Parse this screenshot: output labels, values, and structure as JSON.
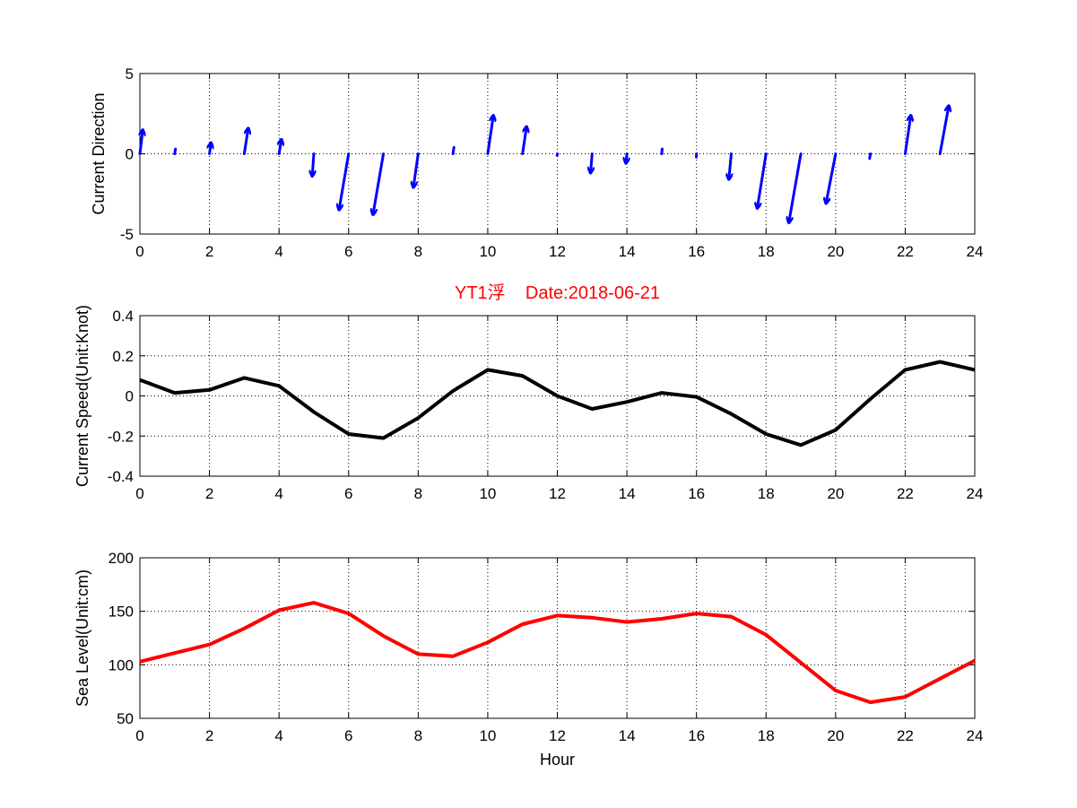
{
  "chart_data": [
    {
      "type": "quiver",
      "title": "",
      "xlabel": "",
      "ylabel": "Current Direction",
      "xlim": [
        0,
        24
      ],
      "ylim": [
        -5,
        5
      ],
      "xticks": [
        0,
        2,
        4,
        6,
        8,
        10,
        12,
        14,
        16,
        18,
        20,
        22,
        24
      ],
      "yticks": [
        -5,
        0,
        5
      ],
      "grid": true,
      "color": "#0000ff",
      "x": [
        0,
        1,
        2,
        3,
        4,
        5,
        6,
        7,
        8,
        9,
        10,
        11,
        12,
        13,
        14,
        15,
        16,
        17,
        18,
        19,
        20,
        21,
        22,
        23
      ],
      "u": [
        0.18,
        0.05,
        0.1,
        0.25,
        0.15,
        -0.1,
        -0.6,
        -0.65,
        -0.3,
        0.06,
        0.35,
        0.25,
        -0.01,
        -0.1,
        -0.06,
        0.03,
        -0.01,
        -0.15,
        -0.55,
        -0.75,
        -0.6,
        -0.05,
        0.35,
        0.55
      ],
      "v": [
        1.5,
        0.3,
        0.7,
        1.6,
        0.9,
        -1.4,
        -3.5,
        -3.8,
        -2.1,
        0.4,
        2.4,
        1.7,
        -0.1,
        -1.2,
        -0.6,
        0.3,
        -0.2,
        -1.6,
        -3.4,
        -4.3,
        -3.1,
        -0.3,
        2.4,
        3.0
      ]
    },
    {
      "type": "line",
      "title": "YT1浮    Date:2018-06-21",
      "xlabel": "",
      "ylabel": "Current Speed(Unit:Knot)",
      "xlim": [
        0,
        24
      ],
      "ylim": [
        -0.4,
        0.4
      ],
      "xticks": [
        0,
        2,
        4,
        6,
        8,
        10,
        12,
        14,
        16,
        18,
        20,
        22,
        24
      ],
      "yticks": [
        -0.4,
        -0.2,
        0,
        0.2,
        0.4
      ],
      "grid": true,
      "color": "#000000",
      "x": [
        0,
        1,
        2,
        3,
        4,
        5,
        6,
        7,
        8,
        9,
        10,
        11,
        12,
        13,
        14,
        15,
        16,
        17,
        18,
        19,
        20,
        21,
        22,
        23,
        24
      ],
      "y": [
        0.08,
        0.015,
        0.03,
        0.09,
        0.05,
        -0.08,
        -0.19,
        -0.21,
        -0.11,
        0.025,
        0.13,
        0.1,
        0.0,
        -0.065,
        -0.03,
        0.015,
        -0.005,
        -0.09,
        -0.19,
        -0.245,
        -0.17,
        -0.015,
        0.13,
        0.17,
        0.13
      ]
    },
    {
      "type": "line",
      "title": "",
      "xlabel": "Hour",
      "ylabel": "Sea Level(Unit:cm)",
      "xlim": [
        0,
        24
      ],
      "ylim": [
        50,
        200
      ],
      "xticks": [
        0,
        2,
        4,
        6,
        8,
        10,
        12,
        14,
        16,
        18,
        20,
        22,
        24
      ],
      "yticks": [
        50,
        100,
        150,
        200
      ],
      "grid": true,
      "color": "#ff0000",
      "x": [
        0,
        1,
        2,
        3,
        4,
        5,
        6,
        7,
        8,
        9,
        10,
        11,
        12,
        13,
        14,
        15,
        16,
        17,
        18,
        19,
        20,
        21,
        22,
        23,
        24
      ],
      "y": [
        103,
        111,
        119,
        134,
        151,
        158,
        148,
        127,
        110,
        108,
        121,
        138,
        146,
        144,
        140,
        143,
        148,
        145,
        128,
        102,
        76,
        65,
        70,
        87,
        104
      ]
    }
  ]
}
